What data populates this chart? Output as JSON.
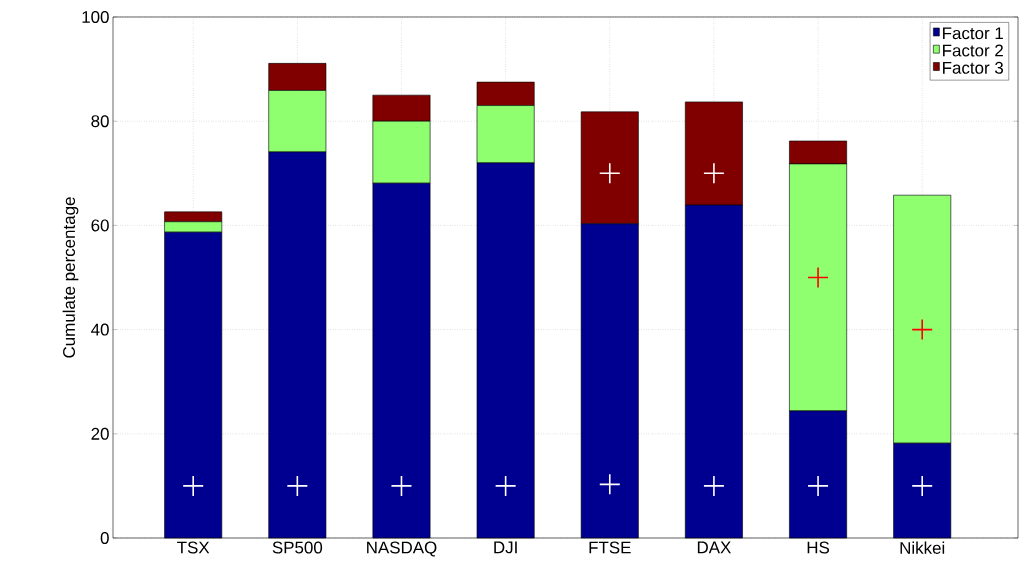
{
  "chart_data": {
    "type": "bar",
    "stacked": true,
    "ylabel": "Cumulate percentage",
    "categories": [
      "TSX",
      "SP500",
      "NASDAQ",
      "DJI",
      "FTSE",
      "DAX",
      "HS",
      "Nikkei"
    ],
    "series": [
      {
        "name": "Factor 1",
        "color": "#000090",
        "values": [
          58.7,
          74.1,
          68.1,
          72.0,
          60.3,
          63.9,
          24.4,
          18.2
        ]
      },
      {
        "name": "Factor 2",
        "color": "#8fff70",
        "values": [
          2.0,
          11.8,
          11.9,
          11.0,
          0,
          0,
          47.4,
          47.6
        ]
      },
      {
        "name": "Factor 3",
        "color": "#800000",
        "values": [
          1.9,
          5.2,
          5.0,
          4.5,
          21.5,
          19.8,
          4.4,
          0
        ]
      },
      {
        "type": "scatter",
        "marker": "cross",
        "color": "#ffffff",
        "values": [
          10,
          10,
          10,
          10,
          10.3,
          10,
          10,
          10
        ]
      },
      {
        "type": "scatter",
        "marker": "cross",
        "color": "#ffffff",
        "values": [
          null,
          null,
          null,
          null,
          70,
          70,
          null,
          null
        ]
      },
      {
        "type": "scatter",
        "marker": "cross",
        "color": "#ff0000",
        "values": [
          null,
          null,
          null,
          null,
          null,
          null,
          50,
          40
        ]
      }
    ],
    "ylim": [
      0,
      100
    ],
    "yticks": [
      0,
      20,
      40,
      60,
      80,
      100
    ],
    "grid": true,
    "legend": "top right"
  }
}
